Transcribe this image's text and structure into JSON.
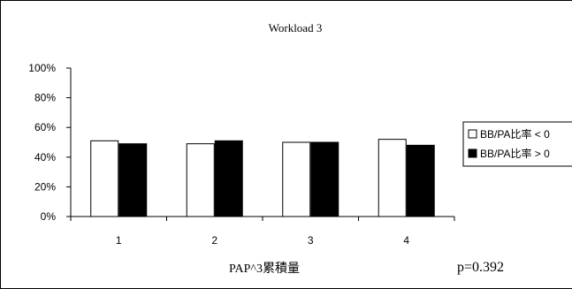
{
  "chart_data": {
    "type": "bar",
    "title": "Workload 3",
    "xlabel": "PAP^3累積量",
    "ylabel": "",
    "categories": [
      "1",
      "2",
      "3",
      "4"
    ],
    "series": [
      {
        "name": "BB/PA比率 < 0",
        "fill": "#ffffff",
        "values": [
          51,
          49,
          50,
          52
        ]
      },
      {
        "name": "BB/PA比率 > 0",
        "fill": "#000000",
        "values": [
          49,
          51,
          50,
          48
        ]
      }
    ],
    "ylim": [
      0,
      100
    ],
    "yticks": [
      "0%",
      "20%",
      "40%",
      "60%",
      "80%",
      "100%"
    ],
    "annotation": "p=0.392",
    "grid": false,
    "legend_position": "right"
  }
}
